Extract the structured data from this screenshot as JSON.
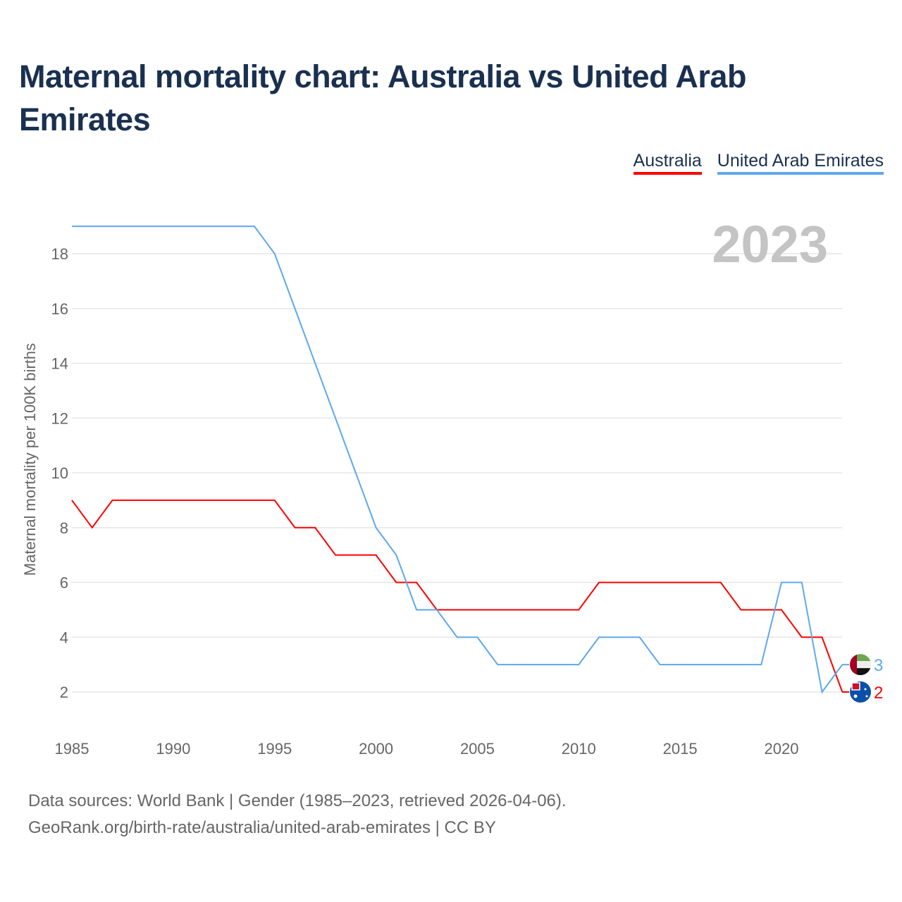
{
  "title": "Maternal mortality chart: Australia vs United Arab Emirates",
  "year_label": "2023",
  "footer": {
    "line1": "Data sources: World Bank | Gender (1985–2023, retrieved 2026-04-06).",
    "line2": "GeoRank.org/birth-rate/australia/united-arab-emirates | CC BY"
  },
  "chart_data": {
    "type": "line",
    "title": "Maternal mortality chart: Australia vs United Arab Emirates",
    "xlabel": "",
    "ylabel": "Maternal mortality per 100K births",
    "xlim": [
      1985,
      2023
    ],
    "ylim": [
      1,
      19.5
    ],
    "x_ticks": [
      1985,
      1990,
      1995,
      2000,
      2005,
      2010,
      2015,
      2020
    ],
    "y_ticks": [
      2,
      4,
      6,
      8,
      10,
      12,
      14,
      16,
      18
    ],
    "grid": true,
    "legend": "top-right",
    "x": [
      1985,
      1986,
      1987,
      1988,
      1989,
      1990,
      1991,
      1992,
      1993,
      1994,
      1995,
      1996,
      1997,
      1998,
      1999,
      2000,
      2001,
      2002,
      2003,
      2004,
      2005,
      2006,
      2007,
      2008,
      2009,
      2010,
      2011,
      2012,
      2013,
      2014,
      2015,
      2016,
      2017,
      2018,
      2019,
      2020,
      2021,
      2022,
      2023
    ],
    "series": [
      {
        "name": "Australia",
        "color": "#ff0000",
        "end_label": "2",
        "values": [
          9,
          8,
          9,
          9,
          9,
          9,
          9,
          9,
          9,
          9,
          9,
          8,
          8,
          7,
          7,
          7,
          6,
          6,
          5,
          5,
          5,
          5,
          5,
          5,
          5,
          5,
          6,
          6,
          6,
          6,
          6,
          6,
          6,
          5,
          5,
          5,
          4,
          4,
          2
        ]
      },
      {
        "name": "United Arab Emirates",
        "color": "#5ea8ee",
        "end_label": "3",
        "values": [
          19,
          19,
          19,
          19,
          19,
          19,
          19,
          19,
          19,
          19,
          18,
          16,
          14,
          12,
          10,
          8,
          7,
          5,
          5,
          4,
          4,
          3,
          3,
          3,
          3,
          3,
          4,
          4,
          4,
          3,
          3,
          3,
          3,
          3,
          3,
          6,
          6,
          2,
          3
        ]
      }
    ]
  }
}
